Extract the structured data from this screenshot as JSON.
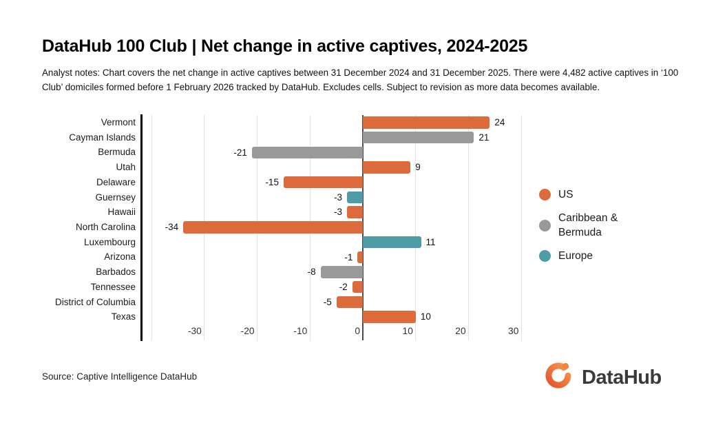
{
  "header": {
    "title": "DataHub 100 Club | Net change in active captives, 2024-2025",
    "notes_lines": [
      "Analyst notes: Chart covers the net change in active captives between 31 December 2024 and 31 December 2025. There were 4,482 active captives in ‘100",
      "Club’ domiciles formed before 1 February 2026 tracked by DataHub. Excludes cells. Subject to revision as more data becomes available."
    ]
  },
  "chart_data": {
    "type": "bar",
    "orientation": "horizontal",
    "title": "DataHub 100 Club | Net change in active captives, 2024-2025",
    "categories": [
      "Vermont",
      "Cayman Islands",
      "Bermuda",
      "Utah",
      "Delaware",
      "Guernsey",
      "Hawaii",
      "North Carolina",
      "Luxembourg",
      "Arizona",
      "Barbados",
      "Tennessee",
      "District of Columbia",
      "Texas"
    ],
    "values": [
      24,
      21,
      -21,
      9,
      -15,
      -3,
      -3,
      -34,
      11,
      -1,
      -8,
      -2,
      -5,
      10
    ],
    "groups": [
      "US",
      "Caribbean & Bermuda",
      "Caribbean & Bermuda",
      "US",
      "US",
      "Europe",
      "US",
      "US",
      "Europe",
      "US",
      "Caribbean & Bermuda",
      "US",
      "US",
      "US"
    ],
    "group_colors": {
      "US": "#DC6A3A",
      "Caribbean & Bermuda": "#999999",
      "Europe": "#4D9CA6"
    },
    "x_ticks": [
      -30,
      -20,
      -10,
      0,
      10,
      20,
      30
    ],
    "grid_ticks": [
      -40,
      -30,
      -20,
      -10,
      0,
      10,
      20,
      30
    ],
    "xlim": [
      -41.7,
      31.9
    ],
    "grid": true,
    "data_labels": true,
    "legend_position": "right"
  },
  "legend": {
    "items": [
      {
        "label": "US",
        "color": "#DC6A3A"
      },
      {
        "label": "Caribbean &\nBermuda",
        "color": "#999999"
      },
      {
        "label": "Europe",
        "color": "#4D9CA6"
      }
    ]
  },
  "footer": {
    "source": "Source: Captive Intelligence DataHub",
    "logo_text": "DataHub"
  },
  "colors": {
    "accent_orange": "#DC6A3A",
    "gray": "#999999",
    "teal": "#4D9CA6",
    "zero_line": "#4a4a4a",
    "gridline": "#e2e2e2"
  }
}
